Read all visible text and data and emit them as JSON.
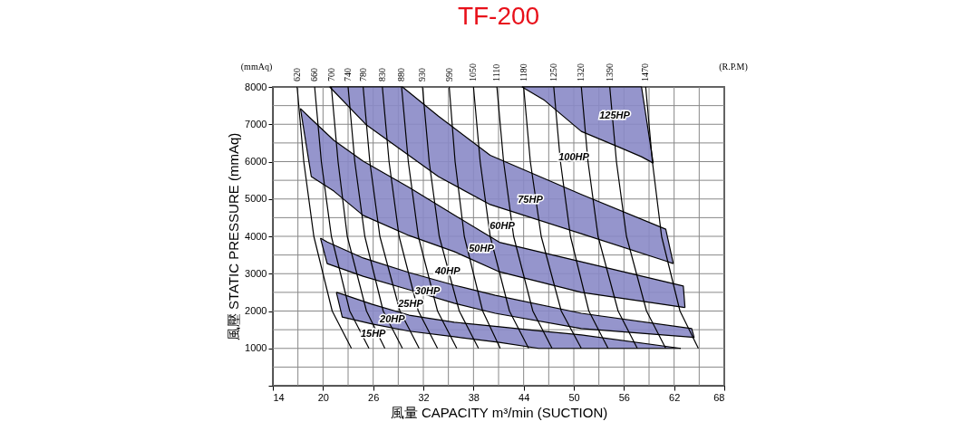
{
  "chart_data": {
    "type": "line",
    "title": "TF-200",
    "xlabel": "風量  CAPACITY  m³/min (SUCTION)",
    "ylabel": "風壓  STATIC  PRESSURE  (mmAq)",
    "xlim": [
      14,
      68
    ],
    "ylim": [
      0,
      8000
    ],
    "xticks": [
      14,
      {
        "value": 17,
        "label": null
      },
      20,
      {
        "value": 23,
        "label": null
      },
      26,
      {
        "value": 29,
        "label": null
      },
      32,
      {
        "value": 35,
        "label": null
      },
      38,
      {
        "value": 41,
        "label": null
      },
      44,
      {
        "value": 47,
        "label": null
      },
      50,
      {
        "value": 53,
        "label": null
      },
      56,
      {
        "value": 59,
        "label": null
      },
      62,
      {
        "value": 65,
        "label": null
      },
      68
    ],
    "yticks": [
      {
        "value": 0,
        "label": null
      },
      {
        "value": 500,
        "label": null
      },
      1000,
      {
        "value": 1500,
        "label": null
      },
      2000,
      {
        "value": 2500,
        "label": null
      },
      3000,
      {
        "value": 3500,
        "label": null
      },
      4000,
      {
        "value": 4500,
        "label": null
      },
      5000,
      {
        "value": 5500,
        "label": null
      },
      6000,
      {
        "value": 6500,
        "label": null
      },
      7000,
      {
        "value": 7500,
        "label": null
      },
      8000
    ],
    "grid": true,
    "series": [
      {
        "type": "line",
        "color": "#000000",
        "x": [
          21.6,
          22.3,
          25.9,
          30.3,
          35.7,
          41.1,
          45.8,
          50.9,
          62.8
        ],
        "values": [
          2500,
          2450,
          2180,
          1890,
          1700,
          1580,
          1470,
          1360,
          1000
        ],
        "upper": [
          2500,
          2450,
          2180,
          1890,
          1700,
          1580,
          1470,
          1360,
          1000
        ],
        "lower": [
          2500,
          1840,
          1650,
          1460,
          1310,
          1160,
          1000,
          1000,
          1000
        ]
      },
      {
        "type": "line",
        "color": "#000000",
        "x": [
          19.7,
          20.5,
          24.8,
          30.3,
          35.7,
          40.6,
          50.9,
          64.1,
          64.4
        ],
        "values": [
          3950,
          3850,
          3420,
          3030,
          2690,
          2420,
          1940,
          1530,
          1290
        ],
        "upper": [
          3950,
          3850,
          3420,
          3030,
          2690,
          2420,
          1940,
          1530,
          1290
        ],
        "lower": [
          3950,
          3270,
          2930,
          2570,
          2210,
          1940,
          1530,
          1300,
          1290
        ]
      },
      {
        "type": "line",
        "color": "#000000",
        "x": [
          17.3,
          18.6,
          21.3,
          24.8,
          30.3,
          35.7,
          41.1,
          50.9,
          63.1,
          63.3
        ],
        "values": [
          7420,
          7140,
          6570,
          6010,
          5310,
          4570,
          3840,
          3320,
          2670,
          2090
        ],
        "upper": [
          7420,
          7140,
          6570,
          6010,
          5310,
          4570,
          3840,
          3320,
          2670,
          2090
        ],
        "lower": [
          7420,
          5600,
          5210,
          4560,
          4020,
          3590,
          3050,
          2500,
          2100,
          2090
        ]
      },
      {
        "type": "line",
        "color": "#000000",
        "x": [
          20.8,
          25.2,
          29.5,
          33.8,
          40.0,
          50.9,
          61.0,
          61.9
        ],
        "values": [
          8000,
          8000,
          8000,
          7220,
          6170,
          5120,
          4190,
          3270
        ],
        "upper": [
          8000,
          8000,
          8000,
          7220,
          6170,
          5120,
          4190,
          3270
        ],
        "lower": [
          8000,
          6980,
          6290,
          5600,
          4850,
          4070,
          3340,
          3270
        ]
      },
      {
        "type": "line",
        "color": "#000000",
        "x": [
          43.8,
          46.5,
          50.9,
          55.5,
          58.1,
          59.5
        ],
        "values": [
          8000,
          8000,
          8000,
          8000,
          8000,
          5960
        ],
        "upper": [
          8000,
          8000,
          8000,
          8000,
          8000,
          5960
        ],
        "lower": [
          8000,
          7640,
          6810,
          6380,
          6130,
          5960
        ]
      },
      {
        "color": "#000000",
        "x": [
          21.6,
          22.3,
          25.9,
          30.3,
          35.7,
          41.1,
          45.8,
          50.9,
          62.8
        ],
        "values": [
          2500,
          1840,
          1650,
          1460,
          1310,
          1160,
          1000,
          1000,
          1000
        ]
      },
      {
        "color": "#000000",
        "x": [
          19.7,
          20.5,
          24.8,
          30.3,
          35.7,
          40.6,
          50.9,
          64.1,
          64.4
        ],
        "values": [
          3950,
          3270,
          2930,
          2570,
          2210,
          1940,
          1530,
          1300,
          1290
        ]
      },
      {
        "color": "#000000",
        "x": [
          17.3,
          18.6,
          21.3,
          24.8,
          30.3,
          35.7,
          41.1,
          50.9,
          63.1,
          63.3
        ],
        "values": [
          7420,
          5600,
          5210,
          4560,
          4020,
          3590,
          3050,
          2500,
          2100,
          2090
        ]
      },
      {
        "color": "#000000",
        "x": [
          20.8,
          25.2,
          29.5,
          33.8,
          40.0,
          50.9,
          61.0,
          61.9
        ],
        "values": [
          8000,
          6980,
          6290,
          5600,
          4850,
          4070,
          3340,
          3270
        ]
      },
      {
        "color": "#000000",
        "x": [
          43.8,
          46.5,
          50.9,
          55.5,
          58.1,
          59.5
        ],
        "values": [
          8000,
          7640,
          6810,
          6380,
          6130,
          5960
        ]
      },
      {
        "name": "620",
        "color": "#000000",
        "x": [
          16.9,
          17.7,
          18.9,
          21.1,
          23.4
        ],
        "values": [
          8000,
          6000,
          4000,
          2000,
          1000
        ]
      },
      {
        "name": "660",
        "color": "#000000",
        "x": [
          19.0,
          19.8,
          21.0,
          23.2,
          25.5
        ],
        "values": [
          8000,
          6000,
          4000,
          2000,
          1000
        ]
      },
      {
        "name": "700",
        "color": "#000000",
        "x": [
          21.0,
          21.8,
          22.9,
          25.2,
          27.4
        ],
        "values": [
          8000,
          6000,
          4000,
          2000,
          1000
        ]
      },
      {
        "name": "740",
        "color": "#000000",
        "x": [
          23.0,
          23.8,
          25.0,
          27.2,
          29.5
        ],
        "values": [
          8000,
          6000,
          4000,
          2000,
          1000
        ]
      },
      {
        "name": "780",
        "color": "#000000",
        "x": [
          24.8,
          25.6,
          26.8,
          29.2,
          31.5
        ],
        "values": [
          8000,
          6000,
          4000,
          2000,
          1000
        ]
      },
      {
        "name": "830",
        "color": "#000000",
        "x": [
          27.1,
          27.9,
          29.1,
          31.4,
          33.7
        ],
        "values": [
          8000,
          6000,
          4000,
          2000,
          1000
        ]
      },
      {
        "name": "880",
        "color": "#000000",
        "x": [
          29.4,
          30.2,
          31.4,
          33.7,
          36.0
        ],
        "values": [
          8000,
          6000,
          4000,
          2000,
          1000
        ]
      },
      {
        "name": "930",
        "color": "#000000",
        "x": [
          31.9,
          32.7,
          33.9,
          36.3,
          38.6
        ],
        "values": [
          8000,
          6000,
          4000,
          2000,
          1000
        ]
      },
      {
        "name": "990",
        "color": "#000000",
        "x": [
          35.1,
          35.8,
          36.9,
          39.1,
          41.2
        ],
        "values": [
          8000,
          6000,
          4000,
          2000,
          1000
        ]
      },
      {
        "name": "1050",
        "color": "#000000",
        "x": [
          38.0,
          38.8,
          40.0,
          42.3,
          44.6
        ],
        "values": [
          8000,
          6000,
          4000,
          2000,
          1000
        ]
      },
      {
        "name": "1110",
        "color": "#000000",
        "x": [
          40.8,
          41.6,
          42.8,
          45.1,
          47.4
        ],
        "values": [
          8000,
          6000,
          4000,
          2000,
          1000
        ]
      },
      {
        "name": "1180",
        "color": "#000000",
        "x": [
          44.0,
          44.8,
          46.1,
          48.5,
          50.9
        ],
        "values": [
          8000,
          6000,
          4000,
          2000,
          1000
        ]
      },
      {
        "name": "1250",
        "color": "#000000",
        "x": [
          47.6,
          48.4,
          49.6,
          51.8,
          54.1
        ],
        "values": [
          8000,
          6000,
          4000,
          2000,
          1000
        ]
      },
      {
        "name": "1320",
        "color": "#000000",
        "x": [
          50.9,
          51.7,
          52.9,
          55.3,
          57.6
        ],
        "values": [
          8000,
          6000,
          4000,
          2000,
          1000
        ]
      },
      {
        "name": "1390",
        "color": "#000000",
        "x": [
          54.3,
          55.1,
          56.3,
          58.7,
          61.0
        ],
        "values": [
          8000,
          6000,
          4000,
          2000,
          1000
        ]
      },
      {
        "name": "1470",
        "color": "#000000",
        "x": [
          58.6,
          59.4,
          60.5,
          62.7,
          64.9
        ],
        "values": [
          8000,
          6000,
          4000,
          2000,
          1000
        ]
      }
    ],
    "annotations": [
      "(mmAq)",
      "(R.P.M)",
      {
        "text": "15HP",
        "x": 26.0,
        "y": 1380
      },
      {
        "text": "20HP",
        "x": 28.3,
        "y": 1770
      },
      "25HP",
      {
        "text": "30HP",
        "x": 32.5,
        "y": 2520
      },
      {
        "text": "40HP",
        "x": 34.9,
        "y": 3050
      },
      "50HP",
      "60HP",
      "75HP",
      "100HP",
      "125HP"
    ]
  }
}
